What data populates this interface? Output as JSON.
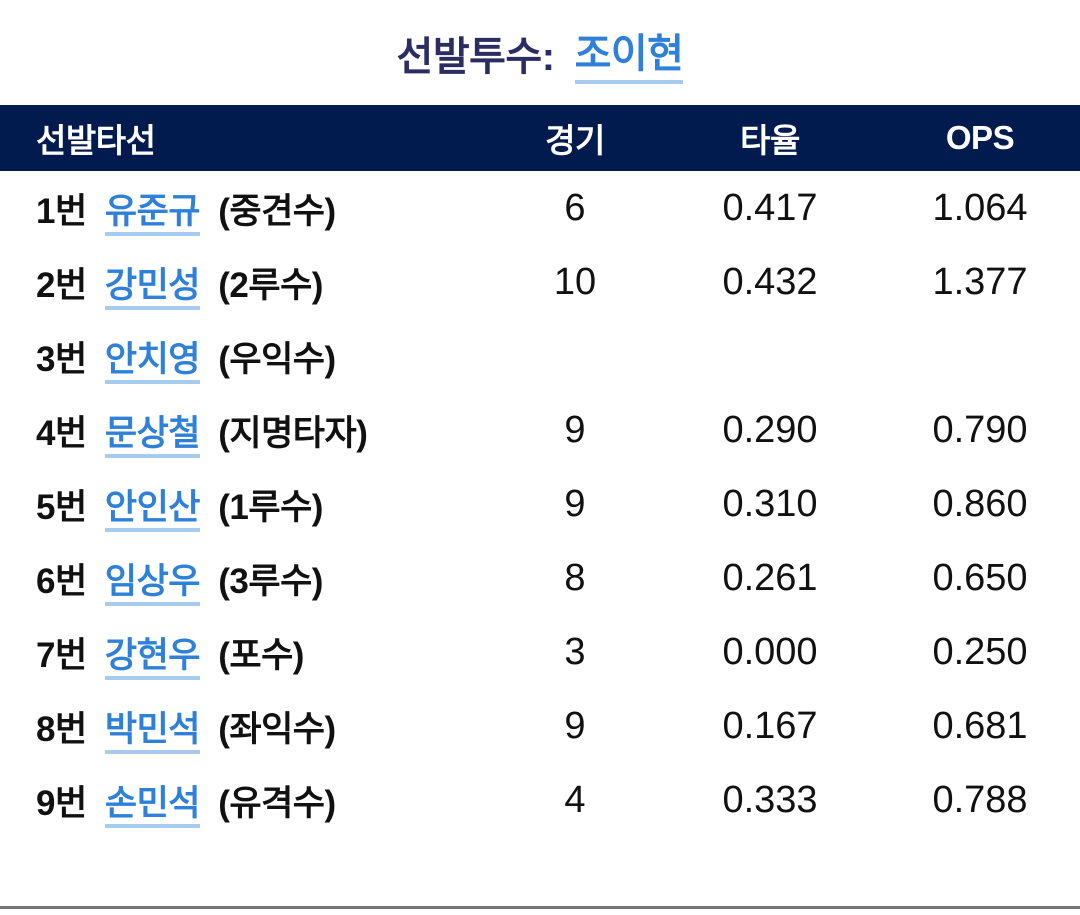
{
  "colors": {
    "header_bar": "#021b4e",
    "title_text": "#2b2d62",
    "link_blue": "#2e80d9",
    "link_underline": "#a6cbee",
    "body_text": "#111111",
    "divider_gray": "#757575"
  },
  "header": {
    "title_label": "선발투수:",
    "pitcher_name": "조이현"
  },
  "table": {
    "headers": {
      "lineup": "선발타선",
      "games": "경기",
      "avg": "타율",
      "ops": "OPS"
    },
    "rows": [
      {
        "order": "1번",
        "name": "유준규",
        "position": "(중견수)",
        "games": "6",
        "avg": "0.417",
        "ops": "1.064"
      },
      {
        "order": "2번",
        "name": "강민성",
        "position": "(2루수)",
        "games": "10",
        "avg": "0.432",
        "ops": "1.377"
      },
      {
        "order": "3번",
        "name": "안치영",
        "position": "(우익수)",
        "games": "",
        "avg": "",
        "ops": ""
      },
      {
        "order": "4번",
        "name": "문상철",
        "position": "(지명타자)",
        "games": "9",
        "avg": "0.290",
        "ops": "0.790"
      },
      {
        "order": "5번",
        "name": "안인산",
        "position": "(1루수)",
        "games": "9",
        "avg": "0.310",
        "ops": "0.860"
      },
      {
        "order": "6번",
        "name": "임상우",
        "position": "(3루수)",
        "games": "8",
        "avg": "0.261",
        "ops": "0.650"
      },
      {
        "order": "7번",
        "name": "강현우",
        "position": "(포수)",
        "games": "3",
        "avg": "0.000",
        "ops": "0.250"
      },
      {
        "order": "8번",
        "name": "박민석",
        "position": "(좌익수)",
        "games": "9",
        "avg": "0.167",
        "ops": "0.681"
      },
      {
        "order": "9번",
        "name": "손민석",
        "position": "(유격수)",
        "games": "4",
        "avg": "0.333",
        "ops": "0.788"
      }
    ]
  }
}
